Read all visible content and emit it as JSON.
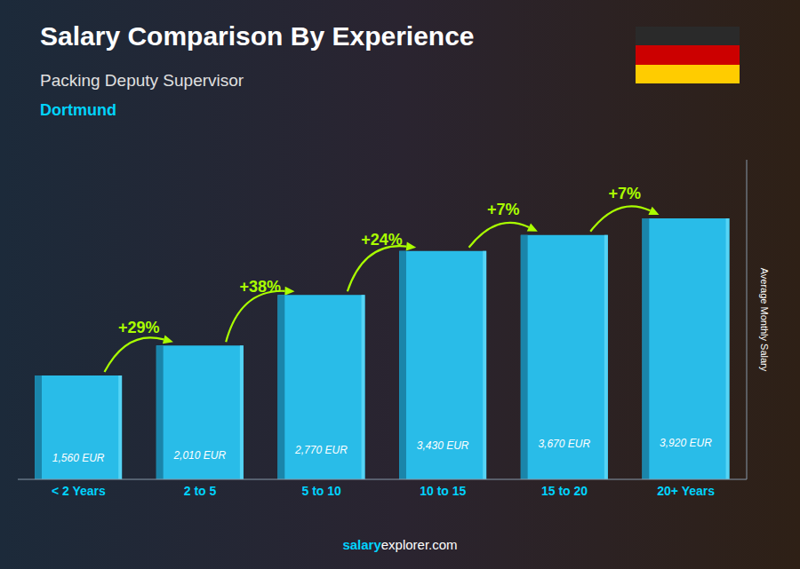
{
  "chart_data": {
    "type": "bar",
    "title": "Salary Comparison By Experience",
    "subtitle": "Packing Deputy Supervisor",
    "categories": [
      "< 2 Years",
      "2 to 5",
      "5 to 10",
      "10 to 15",
      "15 to 20",
      "20+ Years"
    ],
    "values": [
      1560,
      2010,
      2770,
      3430,
      3670,
      3920
    ],
    "value_labels": [
      "1,560 EUR",
      "2,010 EUR",
      "2,770 EUR",
      "3,430 EUR",
      "3,670 EUR",
      "3,920 EUR"
    ],
    "data_labels": true,
    "color": "#29bce8",
    "ylabel": "Average Monthly Salary",
    "ylim": [
      0,
      4800
    ],
    "tick_labels": "x",
    "grid": false,
    "annotations": {
      "city": "Dortmund",
      "changes": [
        "+29%",
        "+38%",
        "+24%",
        "+7%",
        "+7%"
      ],
      "footer": [
        "salary",
        "explorer.com"
      ]
    }
  }
}
